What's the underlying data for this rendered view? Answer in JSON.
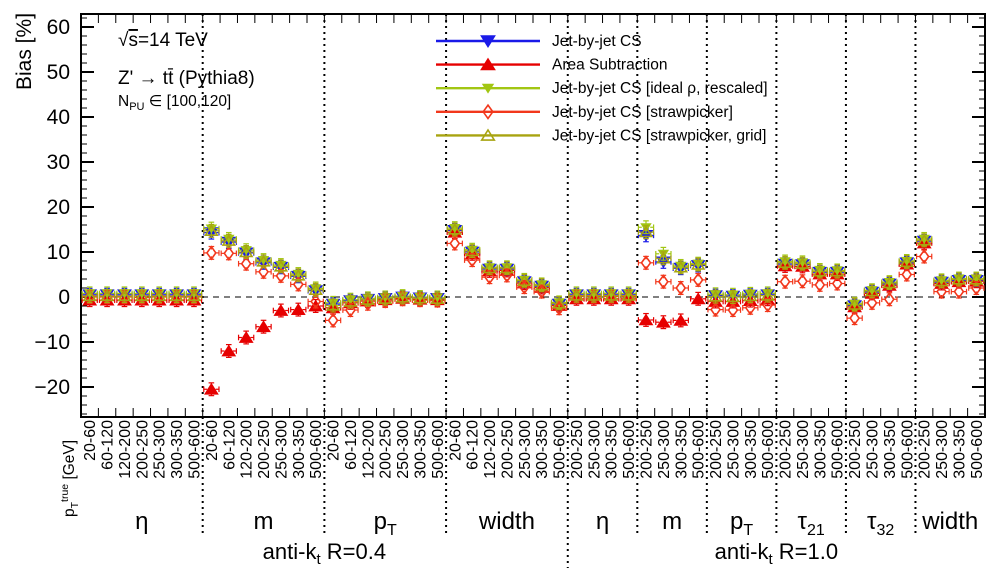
{
  "chart_data": {
    "type": "scatter",
    "ylabel": "Bias [%]",
    "ylim": [
      -26.7,
      63
    ],
    "yticks": [
      60,
      50,
      40,
      30,
      20,
      10,
      0,
      -10,
      -20
    ],
    "minor_tick_step": 2,
    "zero_line": true,
    "grid": false,
    "legend_position": "top-center",
    "xaxis_caption": {
      "main": "p",
      "sub": "T",
      "sup": "true",
      "rest": " [GeV]"
    },
    "annotations": {
      "line1": {
        "sqrt": "√",
        "arg": "s",
        "rest": "=14 TeV"
      },
      "line2": "Z' → tt̄ (Pythia8)",
      "line3": {
        "main": "N",
        "sub": "PU",
        "rest": " ∈ [100,120]"
      }
    },
    "series": [
      {
        "id": "cs",
        "label": "Jet-by-jet CS",
        "color": "#1a1ae8",
        "marker": "triangle-down",
        "fill": "filled",
        "size": 6.5
      },
      {
        "id": "area",
        "label": "Area Subtraction",
        "color": "#e60000",
        "marker": "triangle-up",
        "fill": "filled",
        "size": 6.5
      },
      {
        "id": "ideal",
        "label": "Jet-by-jet CS [ideal ρ, rescaled]",
        "color": "#a2c613",
        "marker": "triangle-down",
        "fill": "filled",
        "size": 4.8
      },
      {
        "id": "straw",
        "label": "Jet-by-jet CS [strawpicker]",
        "color": "#f2371c",
        "marker": "diamond",
        "fill": "open",
        "size": 6.2
      },
      {
        "id": "grid",
        "label": "Jet-by-jet CS [strawpicker, grid]",
        "color": "#a8a410",
        "marker": "triangle-up",
        "fill": "open",
        "size": 5.8
      }
    ],
    "sections": [
      {
        "prefix": "anti-k",
        "sub": "t",
        "suffix": " R=0.4",
        "group_count": 4
      },
      {
        "prefix": "anti-k",
        "sub": "t",
        "suffix": " R=1.0",
        "group_count": 6
      }
    ],
    "groups": [
      {
        "label": {
          "main": "η",
          "sub": ""
        },
        "bins": [
          "20-60",
          "60-120",
          "120-200",
          "200-250",
          "250-300",
          "300-350",
          "500-600"
        ],
        "values": {
          "cs": [
            0.5,
            0.5,
            0.5,
            0.5,
            0.5,
            0.5,
            0.5
          ],
          "area": [
            -0.7,
            -0.7,
            -0.7,
            -0.7,
            -0.7,
            -0.7,
            -0.7
          ],
          "ideal": [
            0.8,
            0.8,
            0.8,
            0.8,
            0.8,
            0.8,
            0.8
          ],
          "straw": [
            0.0,
            0.0,
            0.0,
            -0.1,
            0.0,
            0.0,
            0.0
          ],
          "grid": [
            0.2,
            0.2,
            0.2,
            0.2,
            0.2,
            0.2,
            0.2
          ]
        }
      },
      {
        "label": {
          "main": "m",
          "sub": ""
        },
        "bins": [
          "20-60",
          "60-120",
          "120-200",
          "200-250",
          "250-300",
          "300-350",
          "500-600"
        ],
        "values": {
          "cs": [
            14.3,
            12.2,
            9.8,
            7.6,
            6.6,
            4.6,
            1.4
          ],
          "area": [
            -20.5,
            -12.0,
            -9.0,
            -6.6,
            -3.0,
            -2.8,
            -2.0
          ],
          "ideal": [
            15.2,
            12.9,
            10.4,
            8.2,
            7.1,
            5.1,
            1.9
          ],
          "straw": [
            9.8,
            9.7,
            7.4,
            5.6,
            4.7,
            2.8,
            -1.0
          ],
          "grid": [
            14.7,
            12.5,
            10.0,
            7.9,
            6.8,
            4.8,
            1.6
          ]
        }
      },
      {
        "label": {
          "main": "p",
          "sub": "T"
        },
        "bins": [
          "20-60",
          "60-120",
          "120-200",
          "200-250",
          "250-300",
          "300-350",
          "500-600"
        ],
        "values": {
          "cs": [
            -1.6,
            -0.8,
            -0.5,
            -0.3,
            0.0,
            -0.2,
            -0.3
          ],
          "area": [
            -2.4,
            -1.3,
            -0.9,
            -0.6,
            -0.3,
            -0.5,
            -0.6
          ],
          "ideal": [
            -1.3,
            -0.6,
            -0.3,
            -0.1,
            0.2,
            0.0,
            -0.1
          ],
          "straw": [
            -5.2,
            -2.9,
            -1.5,
            -0.9,
            -0.5,
            -0.7,
            -0.8
          ],
          "grid": [
            -1.9,
            -1.0,
            -0.6,
            -0.4,
            -0.1,
            -0.3,
            -0.4
          ]
        }
      },
      {
        "label": {
          "main": "width",
          "sub": ""
        },
        "bins": [
          "20-60",
          "60-120",
          "120-200",
          "200-250",
          "250-300",
          "300-350",
          "500-600"
        ],
        "values": {
          "cs": [
            14.8,
            10.0,
            6.2,
            6.2,
            3.4,
            2.4,
            -1.6
          ],
          "area": [
            14.4,
            9.6,
            5.8,
            5.9,
            3.1,
            2.1,
            -1.9
          ],
          "ideal": [
            15.3,
            10.5,
            6.6,
            6.6,
            3.8,
            2.8,
            -1.2
          ],
          "straw": [
            11.9,
            8.2,
            4.4,
            4.8,
            2.2,
            1.2,
            -2.5
          ],
          "grid": [
            15.0,
            10.2,
            6.4,
            6.4,
            3.6,
            2.6,
            -1.4
          ]
        }
      },
      {
        "label": {
          "main": "η",
          "sub": ""
        },
        "bins": [
          "200-250",
          "250-300",
          "300-350",
          "500-600"
        ],
        "values": {
          "cs": [
            0.5,
            0.5,
            0.5,
            0.5
          ],
          "area": [
            -0.4,
            -0.4,
            -0.4,
            -0.4
          ],
          "ideal": [
            0.8,
            0.8,
            0.8,
            0.8
          ],
          "straw": [
            0.1,
            0.1,
            0.1,
            0.1
          ],
          "grid": [
            0.3,
            0.3,
            0.3,
            0.3
          ]
        }
      },
      {
        "label": {
          "main": "m",
          "sub": ""
        },
        "bins": [
          "200-250",
          "250-300",
          "300-350",
          "500-600"
        ],
        "values": {
          "cs": [
            13.7,
            7.8,
            6.4,
            7.0
          ],
          "area": [
            -5.1,
            -5.6,
            -5.2,
            -0.4
          ],
          "ideal": [
            15.5,
            9.6,
            6.9,
            7.4
          ],
          "straw": [
            7.6,
            3.4,
            2.0,
            3.8
          ],
          "grid": [
            14.4,
            8.6,
            6.6,
            7.2
          ]
        }
      },
      {
        "label": {
          "main": "p",
          "sub": "T"
        },
        "bins": [
          "200-250",
          "250-300",
          "300-350",
          "500-600"
        ],
        "values": {
          "cs": [
            0.3,
            0.2,
            0.4,
            0.5
          ],
          "area": [
            -1.0,
            -1.0,
            -0.8,
            -0.5
          ],
          "ideal": [
            0.6,
            0.5,
            0.7,
            0.8
          ],
          "straw": [
            -2.8,
            -2.9,
            -2.4,
            -1.8
          ],
          "grid": [
            0.1,
            0.0,
            0.2,
            0.3
          ]
        }
      },
      {
        "label": {
          "main": "τ",
          "sub": "21"
        },
        "bins": [
          "200-250",
          "250-300",
          "300-350",
          "500-600"
        ],
        "values": {
          "cs": [
            7.3,
            7.2,
            5.5,
            5.5
          ],
          "area": [
            6.9,
            6.8,
            5.1,
            5.1
          ],
          "ideal": [
            7.9,
            7.7,
            6.0,
            5.9
          ],
          "straw": [
            3.4,
            3.5,
            2.7,
            3.0
          ],
          "grid": [
            7.6,
            7.4,
            5.7,
            5.7
          ]
        }
      },
      {
        "label": {
          "main": "τ",
          "sub": "32"
        },
        "bins": [
          "200-250",
          "250-300",
          "300-350",
          "500-600"
        ],
        "values": {
          "cs": [
            -1.9,
            1.1,
            2.9,
            7.6
          ],
          "area": [
            -2.2,
            0.8,
            2.6,
            7.3
          ],
          "ideal": [
            -1.5,
            1.5,
            3.3,
            8.0
          ],
          "straw": [
            -4.7,
            -1.3,
            -0.5,
            5.0
          ],
          "grid": [
            -1.7,
            1.3,
            3.1,
            7.8
          ]
        }
      },
      {
        "label": {
          "main": "width",
          "sub": ""
        },
        "bins": [
          "200-250",
          "250-300",
          "300-350",
          "500-600"
        ],
        "values": {
          "cs": [
            12.4,
            3.3,
            3.7,
            3.7
          ],
          "area": [
            12.0,
            3.0,
            3.4,
            3.5
          ],
          "ideal": [
            12.9,
            3.7,
            4.1,
            4.1
          ],
          "straw": [
            9.0,
            1.2,
            1.2,
            2.0
          ],
          "grid": [
            12.6,
            3.5,
            3.9,
            3.9
          ]
        }
      }
    ]
  }
}
